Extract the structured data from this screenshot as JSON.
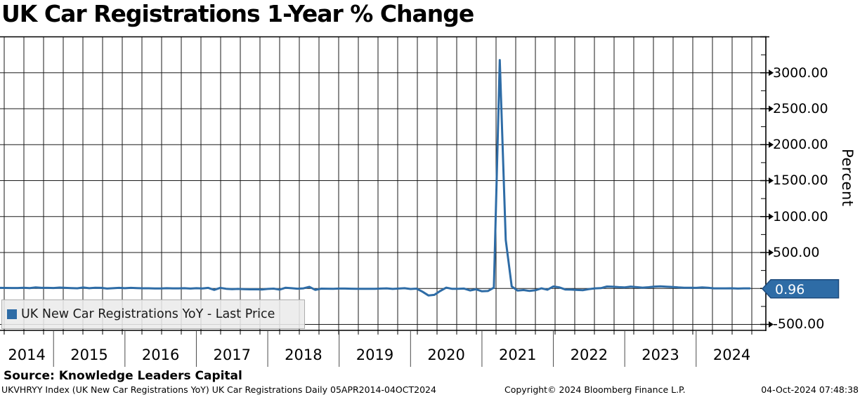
{
  "title": "UK Car Registrations 1-Year % Change",
  "legend": {
    "label": "UK New Car Registrations YoY - Last Price",
    "marker_color": "#2e6ca6"
  },
  "source": "Source: Knowledge Leaders Capital",
  "footer": {
    "left": "UKVHRYY Index (UK New Car Registrations YoY) UK Car Registrations  Daily 05APR2014-04OCT2024",
    "center": "Copyright© 2024 Bloomberg Finance L.P.",
    "right": "04-Oct-2024 07:48:38"
  },
  "chart_data": {
    "type": "line",
    "title": "UK Car Registrations 1-Year % Change",
    "ylabel": "Percent",
    "xlabel": "",
    "grid": true,
    "legend_position": "bottom-left",
    "ylim": [
      -583,
      3500
    ],
    "y_major_step": 500,
    "y_minor_step": 250,
    "y_tick_labels": [
      {
        "value": 3000,
        "label": "3000.00"
      },
      {
        "value": 2500,
        "label": "2500.00"
      },
      {
        "value": 2000,
        "label": "2000.00"
      },
      {
        "value": 1500,
        "label": "1500.00"
      },
      {
        "value": 1000,
        "label": "1000.00"
      },
      {
        "value": 500,
        "label": "500.00"
      },
      {
        "value": -500,
        "label": "-500.00"
      }
    ],
    "x_year_labels": [
      "2014",
      "2015",
      "2016",
      "2017",
      "2018",
      "2019",
      "2020",
      "2021",
      "2022",
      "2023",
      "2024"
    ],
    "x_start": "APR2014",
    "x_end": "OCT2024",
    "last_price": 0.96,
    "last_price_label": "0.96",
    "line_color": "#2e6ca6",
    "badge_fill": "#2e6ca6",
    "badge_border": "#1c4a7c",
    "grid_color": "#1a1a1a",
    "series": [
      {
        "name": "UK New Car Registrations YoY - Last Price",
        "frequency": "monthly",
        "values": [
          8.2,
          7.7,
          6.2,
          6.6,
          9.4,
          5.6,
          14.2,
          8.0,
          8.7,
          6.7,
          12.0,
          8.6,
          5.1,
          2.4,
          12.9,
          3.2,
          9.6,
          8.4,
          -1.1,
          3.8,
          8.4,
          2.9,
          8.4,
          5.3,
          2.0,
          2.5,
          -0.8,
          0.1,
          3.3,
          1.6,
          1.4,
          2.9,
          -1.1,
          2.9,
          -0.3,
          8.4,
          -19.8,
          8.5,
          -4.8,
          -9.3,
          -6.4,
          -9.3,
          -12.2,
          -11.2,
          -14.4,
          -6.3,
          -2.8,
          -15.7,
          10.4,
          3.4,
          -3.5,
          1.2,
          23.1,
          -20.5,
          -2.9,
          -3.0,
          -5.5,
          -1.6,
          -1.4,
          -3.4,
          -4.1,
          -4.6,
          -4.9,
          -4.1,
          -1.6,
          1.3,
          -6.7,
          -1.3,
          3.4,
          -7.3,
          -2.9,
          -44.4,
          -97.3,
          -89.0,
          -34.9,
          11.3,
          -5.8,
          -4.4,
          -1.6,
          -27.4,
          -10.9,
          -39.5,
          -35.5,
          11.5,
          3176.6,
          674.1,
          28.0,
          -29.5,
          -22.0,
          -34.4,
          -24.6,
          1.7,
          -18.2,
          27.5,
          15.0,
          -14.3,
          -15.8,
          -20.6,
          -24.3,
          -9.0,
          1.2,
          4.6,
          26.4,
          23.5,
          18.3,
          14.7,
          26.2,
          18.2,
          11.6,
          16.7,
          25.8,
          28.3,
          24.4,
          21.0,
          14.3,
          9.5,
          9.8,
          8.2,
          14.0,
          10.4,
          1.0,
          1.7,
          1.1,
          2.5,
          -1.3,
          1.0,
          0.96
        ]
      }
    ]
  }
}
